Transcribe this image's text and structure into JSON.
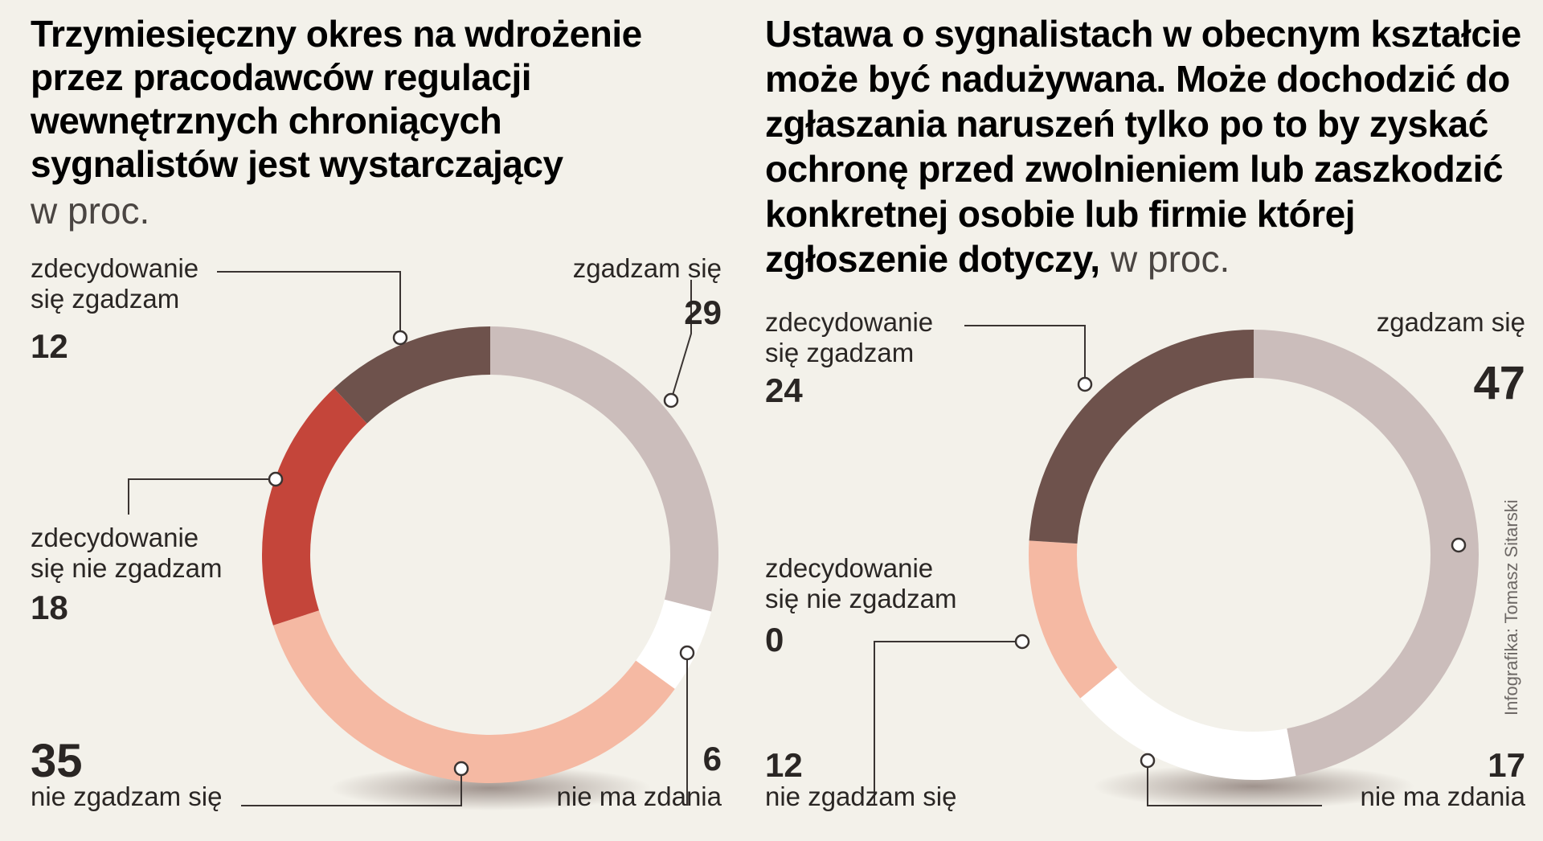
{
  "chart_data": [
    {
      "type": "pie",
      "title_lines": [
        "Trzymiesięczny okres na wdrożenie",
        "przez pracodawców regulacji",
        "wewnętrznych chroniących",
        "sygnalistów jest wystarczający"
      ],
      "unit": "w proc.",
      "slices": [
        {
          "label_lines": [
            "zgadzam się"
          ],
          "value": 29,
          "color": "#cbbdbb"
        },
        {
          "label_lines": [
            "nie ma zdania"
          ],
          "value": 6,
          "color": "#ffffff"
        },
        {
          "label_lines": [
            "nie zgadzam się"
          ],
          "value": 35,
          "color": "#f5b9a3"
        },
        {
          "label_lines": [
            "zdecydowanie",
            "się nie zgadzam"
          ],
          "value": 18,
          "color": "#c4453a"
        },
        {
          "label_lines": [
            "zdecydowanie",
            "się zgadzam"
          ],
          "value": 12,
          "color": "#6e524c"
        }
      ]
    },
    {
      "type": "pie",
      "title_lines": [
        "Ustawa o sygnalistach w obecnym kształcie",
        "może być nadużywana. Może dochodzić do",
        "zgłaszania naruszeń tylko po to by zyskać",
        "ochronę przed zwolnieniem lub zaszkodzić",
        "konkretnej osobie lub firmie której",
        "zgłoszenie dotyczy,"
      ],
      "unit": "w proc.",
      "slices": [
        {
          "label_lines": [
            "zgadzam się"
          ],
          "value": 47,
          "color": "#cbbdbb"
        },
        {
          "label_lines": [
            "nie ma zdania"
          ],
          "value": 17,
          "color": "#ffffff"
        },
        {
          "label_lines": [
            "nie zgadzam się"
          ],
          "value": 12,
          "color": "#f5b9a3"
        },
        {
          "label_lines": [
            "zdecydowanie",
            "się nie zgadzam"
          ],
          "value": 0,
          "color": "#c4453a"
        },
        {
          "label_lines": [
            "zdecydowanie",
            "się zgadzam"
          ],
          "value": 24,
          "color": "#6e524c"
        }
      ]
    }
  ],
  "credit": "Infografika: Tomasz Sitarski"
}
